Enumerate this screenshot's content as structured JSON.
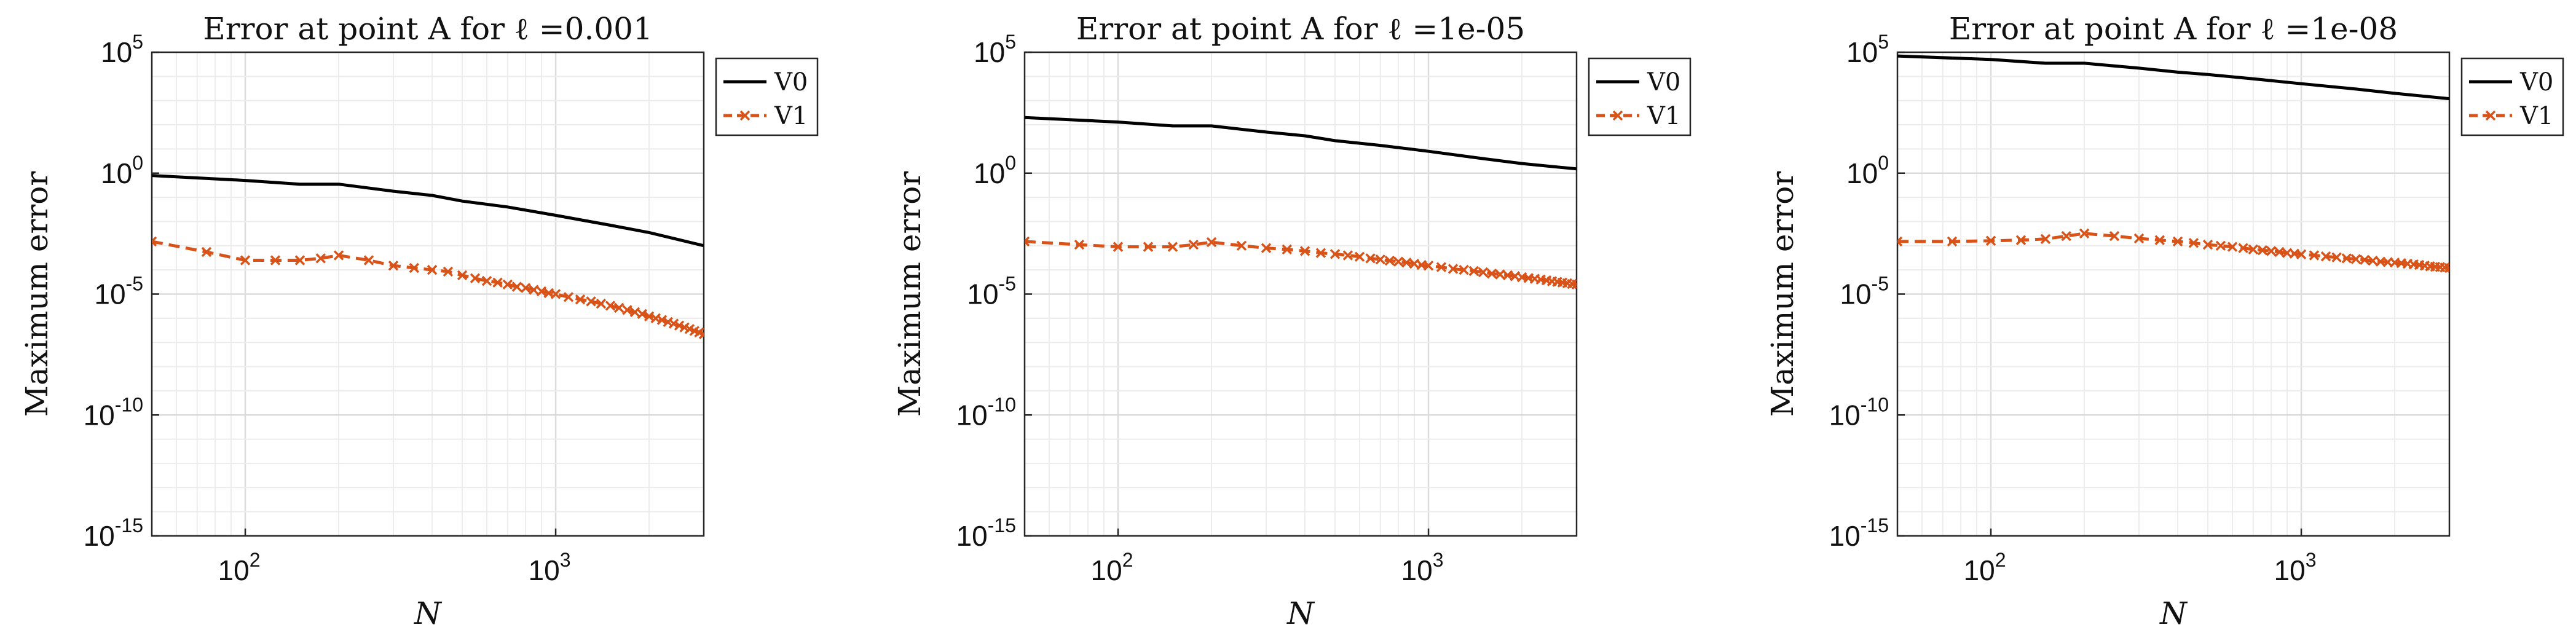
{
  "colors": {
    "v0": "#000000",
    "v1": "#d95319",
    "grid": "#dcdcdc",
    "minor_grid": "#ececec",
    "axis": "#262626"
  },
  "chart_data": [
    {
      "type": "line",
      "title": "Error at point A for ℓ =0.001",
      "xlabel": "N",
      "ylabel": "Maximum error",
      "xscale": "log",
      "yscale": "log",
      "xlim": [
        50,
        3000
      ],
      "ylim": [
        1e-15,
        100000.0
      ],
      "xticks": [
        {
          "value": 100,
          "base": "10",
          "exp": "2"
        },
        {
          "value": 1000,
          "base": "10",
          "exp": "3"
        }
      ],
      "yticks": [
        {
          "value": 100000.0,
          "base": "10",
          "exp": "5"
        },
        {
          "value": 1,
          "base": "10",
          "exp": "0"
        },
        {
          "value": 1e-05,
          "base": "10",
          "exp": "-5"
        },
        {
          "value": 1e-10,
          "base": "10",
          "exp": "-10"
        },
        {
          "value": 1e-15,
          "base": "10",
          "exp": "-15"
        }
      ],
      "grid": true,
      "legend": {
        "position": "outside-right"
      },
      "series": [
        {
          "name": "V0",
          "style": "solid",
          "marker": "none",
          "x": [
            50,
            100,
            150,
            200,
            300,
            400,
            500,
            700,
            1000,
            1500,
            2000,
            3000
          ],
          "y": [
            0.8,
            0.5,
            0.35,
            0.35,
            0.18,
            0.12,
            0.07,
            0.04,
            0.018,
            0.007,
            0.0035,
            0.001
          ]
        },
        {
          "name": "V1",
          "style": "dashed",
          "marker": "x",
          "x": [
            50,
            75,
            100,
            125,
            150,
            175,
            200,
            250,
            300,
            350,
            400,
            450,
            500,
            550,
            600,
            650,
            700,
            750,
            800,
            850,
            900,
            950,
            1000,
            1100,
            1200,
            1300,
            1400,
            1500,
            1600,
            1700,
            1800,
            1900,
            2000,
            2100,
            2200,
            2300,
            2400,
            2500,
            2600,
            2700,
            2800,
            2900,
            3000
          ],
          "y": [
            0.0015,
            0.00055,
            0.00025,
            0.00025,
            0.00025,
            0.0003,
            0.0004,
            0.00025,
            0.00015,
            0.00012,
            0.0001,
            8.5e-05,
            6e-05,
            4.5e-05,
            3.5e-05,
            3e-05,
            2.5e-05,
            2e-05,
            1.8e-05,
            1.5e-05,
            1.3e-05,
            1.1e-05,
            1e-05,
            7.5e-06,
            6e-06,
            5e-06,
            4e-06,
            3.3e-06,
            2.7e-06,
            2.2e-06,
            1.8e-06,
            1.5e-06,
            1.2e-06,
            1e-06,
            8.5e-07,
            7e-07,
            6e-07,
            5e-07,
            4.2e-07,
            3.6e-07,
            3e-07,
            2.6e-07,
            2.2e-07
          ]
        }
      ]
    },
    {
      "type": "line",
      "title": "Error at point A for ℓ =1e-05",
      "xlabel": "N",
      "ylabel": "Maximum error",
      "xscale": "log",
      "yscale": "log",
      "xlim": [
        50,
        3000
      ],
      "ylim": [
        1e-15,
        100000.0
      ],
      "xticks": [
        {
          "value": 100,
          "base": "10",
          "exp": "2"
        },
        {
          "value": 1000,
          "base": "10",
          "exp": "3"
        }
      ],
      "yticks": [
        {
          "value": 100000.0,
          "base": "10",
          "exp": "5"
        },
        {
          "value": 1,
          "base": "10",
          "exp": "0"
        },
        {
          "value": 1e-05,
          "base": "10",
          "exp": "-5"
        },
        {
          "value": 1e-10,
          "base": "10",
          "exp": "-10"
        },
        {
          "value": 1e-15,
          "base": "10",
          "exp": "-15"
        }
      ],
      "grid": true,
      "legend": {
        "position": "outside-right"
      },
      "series": [
        {
          "name": "V0",
          "style": "solid",
          "marker": "none",
          "x": [
            50,
            100,
            150,
            200,
            300,
            400,
            500,
            700,
            1000,
            1500,
            2000,
            3000
          ],
          "y": [
            200,
            130,
            90,
            90,
            50,
            35,
            22,
            14,
            8,
            4,
            2.5,
            1.5
          ]
        },
        {
          "name": "V1",
          "style": "dashed",
          "marker": "x",
          "x": [
            50,
            75,
            100,
            125,
            150,
            175,
            200,
            250,
            300,
            350,
            400,
            450,
            500,
            550,
            600,
            650,
            700,
            750,
            800,
            850,
            900,
            950,
            1000,
            1100,
            1200,
            1300,
            1400,
            1500,
            1600,
            1700,
            1800,
            1900,
            2000,
            2100,
            2200,
            2300,
            2400,
            2500,
            2600,
            2700,
            2800,
            2900,
            3000
          ],
          "y": [
            0.0015,
            0.0011,
            0.0009,
            0.0009,
            0.0009,
            0.0011,
            0.0014,
            0.001,
            0.0008,
            0.0007,
            0.0006,
            0.0005,
            0.00045,
            0.0004,
            0.00035,
            0.0003,
            0.00027,
            0.00024,
            0.00022,
            0.0002,
            0.00018,
            0.00016,
            0.00015,
            0.00013,
            0.00011,
            0.0001,
            9e-05,
            8e-05,
            7e-05,
            6.5e-05,
            6e-05,
            5.5e-05,
            5e-05,
            4.6e-05,
            4.3e-05,
            4e-05,
            3.7e-05,
            3.4e-05,
            3.2e-05,
            3e-05,
            2.8e-05,
            2.6e-05,
            2.5e-05
          ]
        }
      ]
    },
    {
      "type": "line",
      "title": "Error at point A for ℓ =1e-08",
      "xlabel": "N",
      "ylabel": "Maximum error",
      "xscale": "log",
      "yscale": "log",
      "xlim": [
        50,
        3000
      ],
      "ylim": [
        1e-15,
        100000.0
      ],
      "xticks": [
        {
          "value": 100,
          "base": "10",
          "exp": "2"
        },
        {
          "value": 1000,
          "base": "10",
          "exp": "3"
        }
      ],
      "yticks": [
        {
          "value": 100000.0,
          "base": "10",
          "exp": "5"
        },
        {
          "value": 1,
          "base": "10",
          "exp": "0"
        },
        {
          "value": 1e-05,
          "base": "10",
          "exp": "-5"
        },
        {
          "value": 1e-10,
          "base": "10",
          "exp": "-10"
        },
        {
          "value": 1e-15,
          "base": "10",
          "exp": "-15"
        }
      ],
      "grid": true,
      "legend": {
        "position": "outside-right"
      },
      "series": [
        {
          "name": "V0",
          "style": "solid",
          "marker": "none",
          "x": [
            50,
            100,
            150,
            200,
            300,
            400,
            500,
            700,
            1000,
            1500,
            2000,
            3000
          ],
          "y": [
            70000,
            50000,
            35000,
            35000,
            22000,
            15000,
            12000,
            8000,
            5000,
            3000,
            2000,
            1200
          ]
        },
        {
          "name": "V1",
          "style": "dashed",
          "marker": "x",
          "x": [
            50,
            75,
            100,
            125,
            150,
            175,
            200,
            250,
            300,
            350,
            400,
            450,
            500,
            550,
            600,
            650,
            700,
            750,
            800,
            850,
            900,
            950,
            1000,
            1100,
            1200,
            1300,
            1400,
            1500,
            1600,
            1700,
            1800,
            1900,
            2000,
            2100,
            2200,
            2300,
            2400,
            2500,
            2600,
            2700,
            2800,
            2900,
            3000
          ],
          "y": [
            0.0015,
            0.0015,
            0.0016,
            0.0017,
            0.0019,
            0.0025,
            0.0032,
            0.0025,
            0.002,
            0.0017,
            0.0015,
            0.0013,
            0.0011,
            0.001,
            0.0009,
            0.0008,
            0.0007,
            0.00065,
            0.0006,
            0.00055,
            0.0005,
            0.00047,
            0.00044,
            0.0004,
            0.00036,
            0.00033,
            0.0003,
            0.00028,
            0.00026,
            0.00024,
            0.00022,
            0.00021,
            0.0002,
            0.00019,
            0.00018,
            0.00017,
            0.00016,
            0.00015,
            0.00014,
            0.000135,
            0.00013,
            0.000125,
            0.00012
          ]
        }
      ]
    }
  ]
}
